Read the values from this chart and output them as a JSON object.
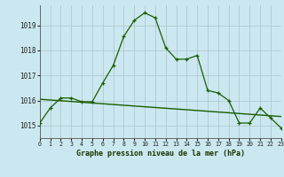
{
  "title": "Graphe pression niveau de la mer (hPa)",
  "background_color": "#cbe8f0",
  "grid_color": "#b0c8d0",
  "line_color": "#1a5c00",
  "x_labels": [
    "0",
    "1",
    "2",
    "3",
    "4",
    "5",
    "6",
    "7",
    "8",
    "9",
    "10",
    "11",
    "12",
    "13",
    "14",
    "15",
    "16",
    "17",
    "18",
    "19",
    "20",
    "21",
    "22",
    "23"
  ],
  "y_ticks": [
    1015,
    1016,
    1017,
    1018,
    1019
  ],
  "ylim": [
    1014.5,
    1019.8
  ],
  "xlim": [
    0,
    23
  ],
  "hours": [
    0,
    1,
    2,
    3,
    4,
    5,
    6,
    7,
    8,
    9,
    10,
    11,
    12,
    13,
    14,
    15,
    16,
    17,
    18,
    19,
    20,
    21,
    22,
    23
  ],
  "pressure_main": [
    1015.1,
    1015.7,
    1016.1,
    1016.1,
    1015.95,
    1015.95,
    1016.7,
    1017.4,
    1018.55,
    1019.2,
    1019.5,
    1019.3,
    1018.1,
    1017.65,
    1017.65,
    1017.8,
    1016.4,
    1016.3,
    1016.0,
    1015.1,
    1015.1,
    1015.7,
    1015.3,
    1014.9
  ],
  "pressure_trend": [
    1016.05,
    1016.02,
    1015.99,
    1015.96,
    1015.93,
    1015.9,
    1015.87,
    1015.84,
    1015.81,
    1015.78,
    1015.75,
    1015.72,
    1015.69,
    1015.66,
    1015.63,
    1015.6,
    1015.57,
    1015.54,
    1015.51,
    1015.48,
    1015.45,
    1015.42,
    1015.39,
    1015.36
  ]
}
